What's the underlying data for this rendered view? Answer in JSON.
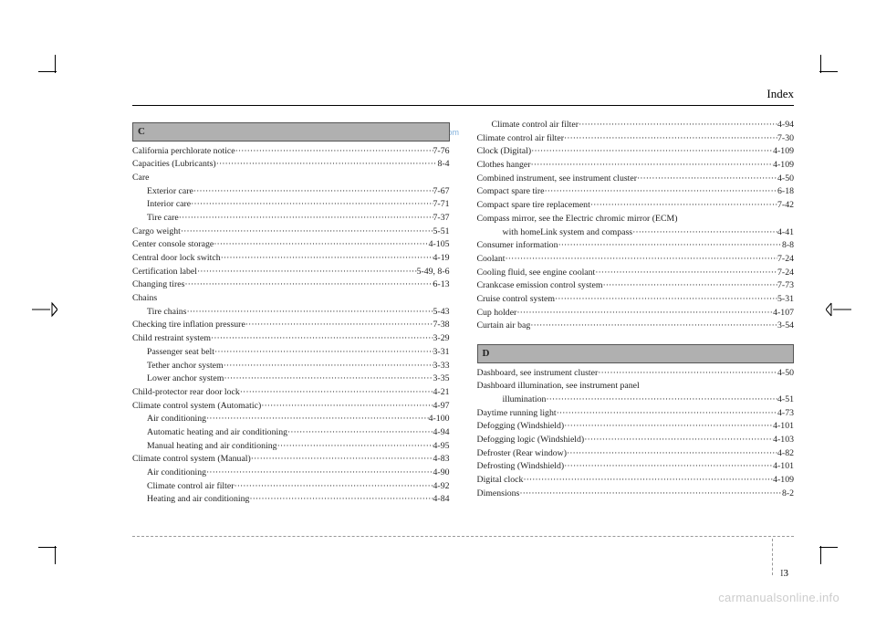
{
  "header": "Index",
  "watermark_top": "CarManuals2.com",
  "watermark_bottom": "carmanualsonline.info",
  "page_number_prefix": "I",
  "page_number": "3",
  "sections": {
    "C": {
      "letter": "C",
      "rows": [
        {
          "t": "California perchlorate notice",
          "p": "7-76",
          "indent": 0
        },
        {
          "t": "Capacities (Lubricants)",
          "p": "8-4",
          "indent": 0
        },
        {
          "t": "Care",
          "p": "",
          "indent": 0,
          "noline": true
        },
        {
          "t": "Exterior care",
          "p": "7-67",
          "indent": 1
        },
        {
          "t": "Interior care",
          "p": "7-71",
          "indent": 1
        },
        {
          "t": "Tire care",
          "p": "7-37",
          "indent": 1
        },
        {
          "t": "Cargo weight",
          "p": "5-51",
          "indent": 0
        },
        {
          "t": "Center console storage",
          "p": "4-105",
          "indent": 0
        },
        {
          "t": "Central door lock switch",
          "p": "4-19",
          "indent": 0
        },
        {
          "t": "Certification label",
          "p": "5-49, 8-6",
          "indent": 0
        },
        {
          "t": "Changing tires",
          "p": "6-13",
          "indent": 0
        },
        {
          "t": "Chains",
          "p": "",
          "indent": 0,
          "noline": true
        },
        {
          "t": "Tire chains",
          "p": "5-43",
          "indent": 1
        },
        {
          "t": "Checking tire inflation pressure",
          "p": "7-38",
          "indent": 0
        },
        {
          "t": "Child restraint system",
          "p": "3-29",
          "indent": 0
        },
        {
          "t": "Passenger seat belt",
          "p": "3-31",
          "indent": 1
        },
        {
          "t": "Tether anchor system",
          "p": "3-33",
          "indent": 1
        },
        {
          "t": "Lower anchor system",
          "p": "3-35",
          "indent": 1
        },
        {
          "t": "Child-protector rear door lock",
          "p": "4-21",
          "indent": 0
        },
        {
          "t": "Climate control system (Automatic)",
          "p": "4-97",
          "indent": 0
        },
        {
          "t": "Air conditioning",
          "p": "4-100",
          "indent": 1
        },
        {
          "t": "Automatic heating and air conditioning",
          "p": "4-94",
          "indent": 1
        },
        {
          "t": "Manual heating and air conditioning",
          "p": "4-95",
          "indent": 1
        },
        {
          "t": "Climate control system (Manual)",
          "p": "4-83",
          "indent": 0
        },
        {
          "t": "Air conditioning",
          "p": "4-90",
          "indent": 1
        },
        {
          "t": "Climate control air filter",
          "p": "4-92",
          "indent": 1
        },
        {
          "t": "Heating and air conditioning",
          "p": "4-84",
          "indent": 1
        }
      ]
    },
    "C2": {
      "rows": [
        {
          "t": "Climate control air filter",
          "p": "4-94",
          "indent": 1
        },
        {
          "t": "Climate control air filter",
          "p": "7-30",
          "indent": 0
        },
        {
          "t": "Clock (Digital)",
          "p": "4-109",
          "indent": 0
        },
        {
          "t": "Clothes hanger",
          "p": "4-109",
          "indent": 0
        },
        {
          "t": "Combined instrument, see instrument cluster",
          "p": "4-50",
          "indent": 0
        },
        {
          "t": "Compact spare tire",
          "p": "6-18",
          "indent": 0
        },
        {
          "t": "Compact spare tire replacement",
          "p": "7-42",
          "indent": 0
        },
        {
          "t": "Compass mirror, see the Electric chromic mirror (ECM)",
          "p": "",
          "indent": 0,
          "noline": true
        },
        {
          "t": "with homeLink system and compass",
          "p": "4-41",
          "indent": 2
        },
        {
          "t": "Consumer information",
          "p": "8-8",
          "indent": 0
        },
        {
          "t": "Coolant",
          "p": "7-24",
          "indent": 0
        },
        {
          "t": "Cooling fluid, see engine coolant",
          "p": "7-24",
          "indent": 0
        },
        {
          "t": "Crankcase emission control system",
          "p": "7-73",
          "indent": 0
        },
        {
          "t": "Cruise control system",
          "p": "5-31",
          "indent": 0
        },
        {
          "t": "Cup holder",
          "p": "4-107",
          "indent": 0
        },
        {
          "t": "Curtain air bag",
          "p": "3-54",
          "indent": 0
        }
      ]
    },
    "D": {
      "letter": "D",
      "rows": [
        {
          "t": "Dashboard, see instrument cluster",
          "p": "4-50",
          "indent": 0
        },
        {
          "t": "Dashboard illumination, see instrument panel",
          "p": "",
          "indent": 0,
          "noline": true
        },
        {
          "t": "illumination",
          "p": "4-51",
          "indent": 2
        },
        {
          "t": "Daytime running light",
          "p": "4-73",
          "indent": 0
        },
        {
          "t": "Defogging (Windshield)",
          "p": "4-101",
          "indent": 0
        },
        {
          "t": "Defogging logic (Windshield)",
          "p": "4-103",
          "indent": 0
        },
        {
          "t": "Defroster (Rear window)",
          "p": "4-82",
          "indent": 0
        },
        {
          "t": "Defrosting (Windshield)",
          "p": "4-101",
          "indent": 0
        },
        {
          "t": "Digital clock",
          "p": "4-109",
          "indent": 0
        },
        {
          "t": "Dimensions",
          "p": "8-2",
          "indent": 0
        }
      ]
    }
  }
}
